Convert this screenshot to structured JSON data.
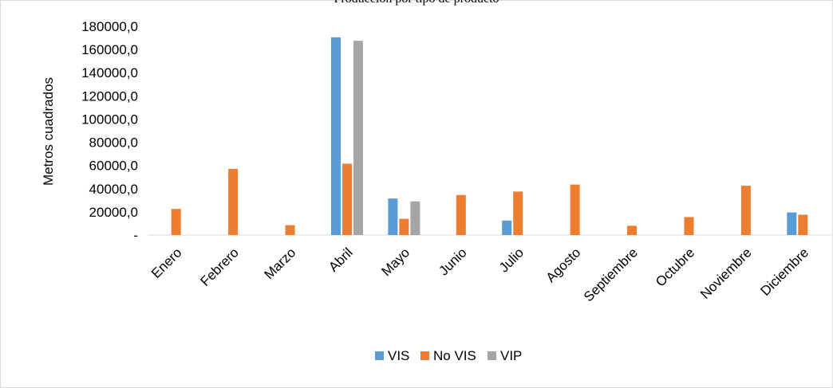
{
  "chart_data": {
    "type": "bar",
    "title": "Producción por tipo de producto",
    "xlabel": "",
    "ylabel": "Metros cuadrados",
    "ylim": [
      0,
      180000
    ],
    "yticks": [
      "-",
      "20000,0",
      "40000,0",
      "60000,0",
      "80000,0",
      "100000,0",
      "120000,0",
      "140000,0",
      "160000,0",
      "180000,0"
    ],
    "grid": false,
    "legend_position": "bottom",
    "categories": [
      "Enero",
      "Febrero",
      "Marzo",
      "Abril",
      "Mayo",
      "Junio",
      "Julio",
      "Agosto",
      "Septiembre",
      "Octubre",
      "Noviembre",
      "Diciembre"
    ],
    "series": [
      {
        "name": "VIS",
        "color": "#5b9bd5",
        "values": [
          0,
          0,
          0,
          170500,
          31500,
          0,
          12500,
          0,
          0,
          0,
          0,
          19500
        ]
      },
      {
        "name": "No VIS",
        "color": "#ed7d31",
        "values": [
          22500,
          57000,
          8500,
          61500,
          14000,
          34500,
          37500,
          43500,
          8000,
          15500,
          42500,
          17500
        ]
      },
      {
        "name": "VIP",
        "color": "#a5a5a5",
        "values": [
          0,
          0,
          0,
          167500,
          29000,
          0,
          0,
          0,
          0,
          0,
          0,
          0
        ]
      }
    ]
  }
}
